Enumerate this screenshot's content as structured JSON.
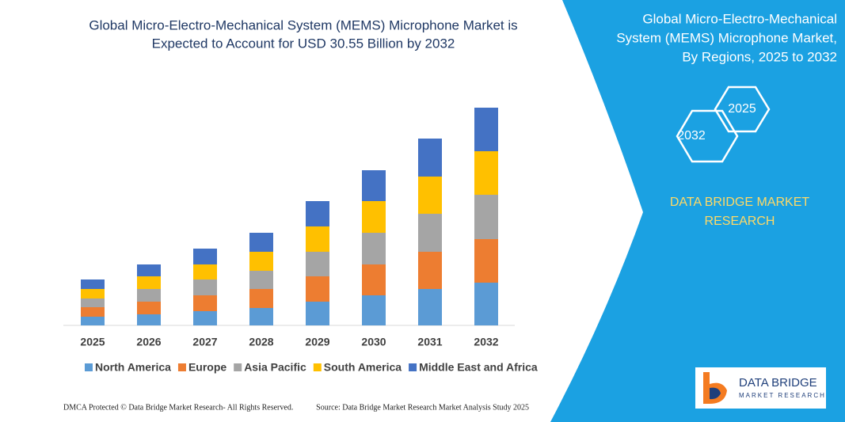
{
  "chart_data": {
    "type": "stacked-bar",
    "title_lines": [
      "Global Micro-Electro-Mechanical System (MEMS) Microphone Market is",
      "Expected to Account for USD 30.55 Billion by 2032"
    ],
    "categories": [
      "2025",
      "2026",
      "2027",
      "2028",
      "2029",
      "2030",
      "2031",
      "2032"
    ],
    "series": [
      {
        "name": "North America",
        "color": "#5b9bd5",
        "values": [
          11,
          14,
          18,
          22,
          30,
          38,
          46,
          54
        ]
      },
      {
        "name": "Europe",
        "color": "#ed7d31",
        "values": [
          12,
          16,
          20,
          24,
          32,
          39,
          47,
          55
        ]
      },
      {
        "name": "Asia Pacific",
        "color": "#a5a5a5",
        "values": [
          11,
          16,
          20,
          23,
          31,
          40,
          48,
          56
        ]
      },
      {
        "name": "South America",
        "color": "#ffc000",
        "values": [
          12,
          16,
          19,
          24,
          32,
          40,
          47,
          55
        ]
      },
      {
        "name": "Middle East and Africa",
        "color": "#4472c4",
        "values": [
          12,
          15,
          20,
          24,
          32,
          39,
          48,
          55
        ]
      }
    ],
    "ylim": [
      0,
      300
    ]
  },
  "panel": {
    "title_lines": [
      "Global Micro-Electro-Mechanical",
      "System (MEMS) Microphone Market,",
      "By Regions, 2025 to 2032"
    ],
    "hex_labels": [
      "2025",
      "2032"
    ],
    "brand_lines": [
      "DATA BRIDGE MARKET",
      "RESEARCH"
    ],
    "logo_text": "DATA BRIDGE",
    "logo_subtext": "MARKET RESEARCH"
  },
  "footer": {
    "left": "DMCA Protected © Data Bridge Market Research- All Rights Reserved.",
    "right": "Source: Data Bridge Market Research Market Analysis Study 2025"
  }
}
